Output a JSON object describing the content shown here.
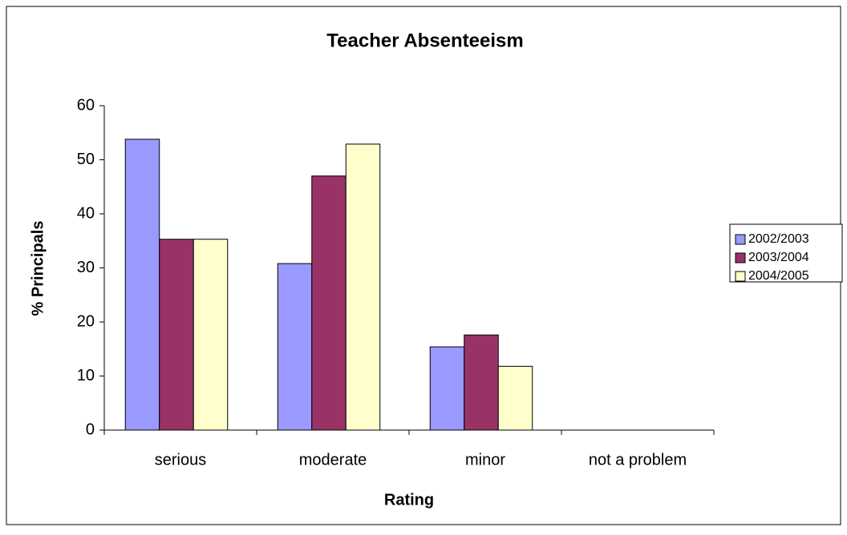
{
  "chart_data": {
    "type": "bar",
    "title": "Teacher Absenteeism",
    "x_label": "Rating",
    "y_label": "% Principals",
    "categories": [
      "serious",
      "moderate",
      "minor",
      "not a problem"
    ],
    "series": [
      {
        "name": "2002/2003",
        "color": "#9999ff",
        "values": [
          53.8,
          30.8,
          15.4,
          0
        ]
      },
      {
        "name": "2003/2004",
        "color": "#993366",
        "values": [
          35.3,
          47,
          17.6,
          0
        ]
      },
      {
        "name": "2004/2005",
        "color": "#ffffcc",
        "values": [
          35.3,
          52.9,
          11.8,
          0
        ]
      }
    ],
    "ylim": [
      0,
      60
    ],
    "yticks": [
      0,
      10,
      20,
      30,
      40,
      50,
      60
    ],
    "legend": "right"
  }
}
